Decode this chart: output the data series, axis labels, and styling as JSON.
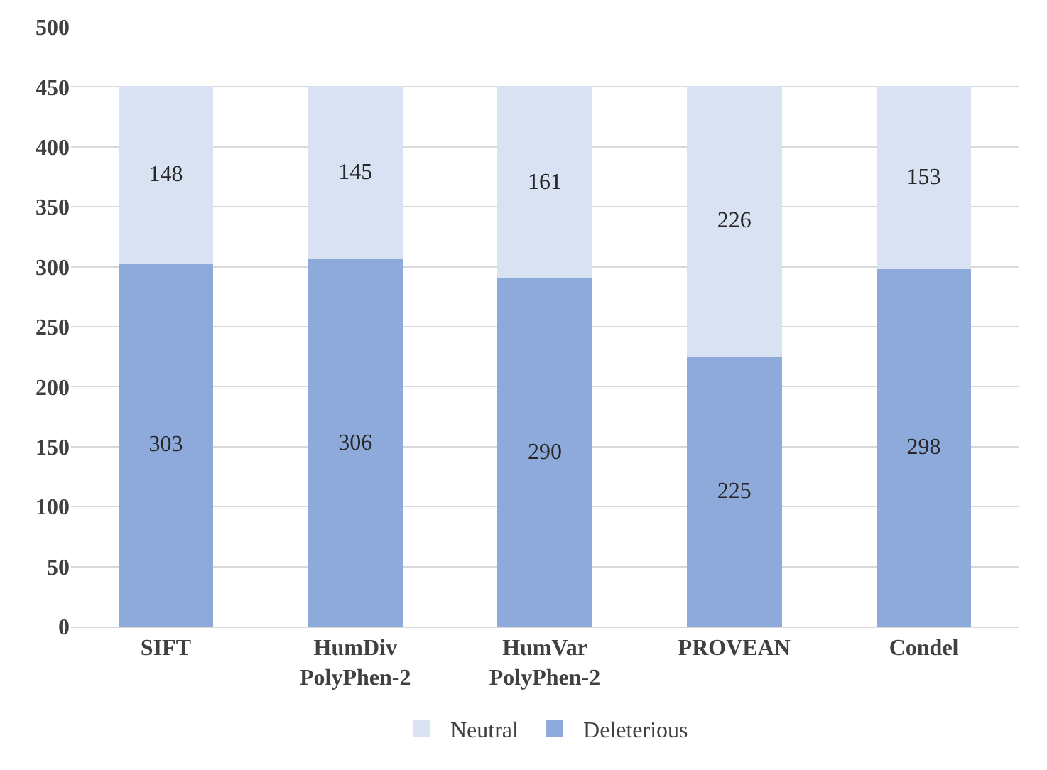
{
  "chart_data": {
    "type": "bar",
    "stacked": true,
    "data_labels": true,
    "grid": "y",
    "legend": "bottom",
    "categories": [
      "SIFT",
      "HumDiv\nPolyPhen-2",
      "HumVar\nPolyPhen-2",
      "PROVEAN",
      "Condel"
    ],
    "series": [
      {
        "name": "Deleterious",
        "color": "#8eaadb",
        "values": [
          303,
          306,
          290,
          225,
          298
        ]
      },
      {
        "name": "Neutral",
        "color": "#d9e2f3",
        "values": [
          148,
          145,
          161,
          226,
          153
        ]
      }
    ],
    "ylim": [
      0,
      500
    ],
    "yticks": [
      0,
      50,
      100,
      150,
      200,
      250,
      300,
      350,
      400,
      450,
      500
    ]
  }
}
